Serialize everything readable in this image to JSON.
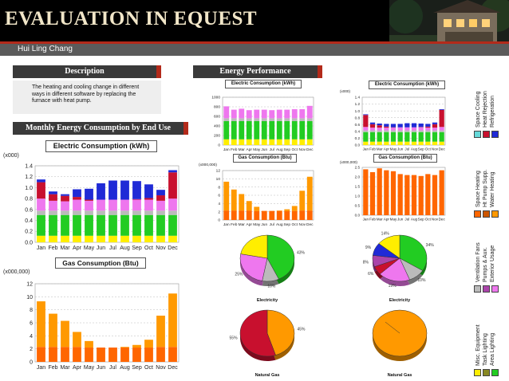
{
  "header": {
    "title": "EVALUATION IN EQUEST",
    "author": "Hui Ling Chang"
  },
  "description": {
    "heading": "Description",
    "text": "The heating and cooling change in different ways in different software by replacing the furnace with heat pump."
  },
  "monthly": {
    "heading": "Monthly Energy Consumption by End Use"
  },
  "performance": {
    "heading": "Energy Performance"
  },
  "months": [
    "Jan",
    "Feb",
    "Mar",
    "Apr",
    "May",
    "Jun",
    "Jul",
    "Aug",
    "Sep",
    "Oct",
    "Nov",
    "Dec"
  ],
  "colors": {
    "space_cooling": "#1f2ad6",
    "heat_rejection": "#c8102e",
    "refrigeration": "#66d9d9",
    "space_heating": "#ff9900",
    "hp_supp": "#cc5500",
    "water_heating": "#ff6600",
    "ventilation_fans": "#ee77ee",
    "pumps_aux": "#aa44aa",
    "exterior_usage": "#bbbbbb",
    "misc_equipment": "#22cc22",
    "task_lighting": "#888822",
    "area_lighting": "#ffee00"
  },
  "legend": {
    "groups": [
      {
        "labels": [
          "Space Cooling",
          "Heat Rejection",
          "Refrigeration"
        ],
        "swatches": [
          "#1f2ad6",
          "#c8102e",
          "#66d9d9"
        ]
      },
      {
        "labels": [
          "Space Heating",
          "Ht Pump Supp.",
          "Water Heating"
        ],
        "swatches": [
          "#ff9900",
          "#cc5500",
          "#ff6600"
        ]
      },
      {
        "labels": [
          "Ventilation Fans",
          "Pumps & Aux.",
          "Exterior Usage"
        ],
        "swatches": [
          "#ee77ee",
          "#aa44aa",
          "#bbbbbb"
        ]
      },
      {
        "labels": [
          "Misc. Equipment",
          "Task Lighting",
          "Area Lighting"
        ],
        "swatches": [
          "#22cc22",
          "#888822",
          "#ffee00"
        ]
      }
    ]
  },
  "chart_data": [
    {
      "id": "large-elec",
      "type": "bar",
      "stacked": true,
      "title": "Electric Consumption (kWh)",
      "yunit": "(x000)",
      "ylim": [
        0,
        1.4
      ],
      "yticks": [
        "0.0",
        "0.2",
        "0.4",
        "0.6",
        "0.8",
        "1.0",
        "1.2",
        "1.4"
      ],
      "series": [
        {
          "key": "area_lighting",
          "values": [
            0.12,
            0.12,
            0.12,
            0.12,
            0.12,
            0.12,
            0.12,
            0.12,
            0.12,
            0.12,
            0.12,
            0.12
          ]
        },
        {
          "key": "misc_equipment",
          "values": [
            0.38,
            0.38,
            0.38,
            0.38,
            0.38,
            0.38,
            0.38,
            0.38,
            0.38,
            0.38,
            0.38,
            0.38
          ]
        },
        {
          "key": "exterior_usage",
          "values": [
            0.08,
            0.08,
            0.08,
            0.08,
            0.08,
            0.08,
            0.08,
            0.08,
            0.08,
            0.08,
            0.08,
            0.08
          ]
        },
        {
          "key": "ventilation_fans",
          "values": [
            0.22,
            0.18,
            0.17,
            0.2,
            0.18,
            0.2,
            0.2,
            0.2,
            0.2,
            0.2,
            0.18,
            0.22
          ]
        },
        {
          "key": "heat_rejection",
          "values": [
            0.3,
            0.12,
            0.1,
            0.05,
            0.02,
            0,
            0,
            0,
            0.01,
            0.03,
            0.1,
            0.48
          ]
        },
        {
          "key": "space_cooling",
          "values": [
            0.05,
            0.05,
            0.03,
            0.14,
            0.2,
            0.3,
            0.35,
            0.35,
            0.33,
            0.25,
            0.1,
            0.04
          ]
        }
      ]
    },
    {
      "id": "large-gas",
      "type": "bar",
      "stacked": true,
      "title": "Gas Consumption (Btu)",
      "yunit": "(x000,000)",
      "ylim": [
        0,
        12
      ],
      "yticks": [
        "0",
        "2",
        "4",
        "6",
        "8",
        "10",
        "12"
      ],
      "series": [
        {
          "key": "water_heating",
          "values": [
            2.3,
            2.3,
            2.3,
            2.3,
            2.2,
            2.2,
            2.2,
            2.2,
            2.2,
            2.2,
            2.3,
            2.3
          ]
        },
        {
          "key": "space_heating",
          "values": [
            7.0,
            5.1,
            4.0,
            2.3,
            1.0,
            0,
            0,
            0.1,
            0.4,
            1.2,
            4.8,
            8.2
          ]
        }
      ]
    },
    {
      "id": "small-elec-left",
      "type": "bar",
      "stacked": true,
      "title": "Electric Consumption (kWh)",
      "ylim": [
        0,
        1000
      ],
      "yticks": [
        "0",
        "200",
        "400",
        "600",
        "800",
        "1000"
      ],
      "series": [
        {
          "key": "area_lighting",
          "values": [
            120,
            120,
            120,
            120,
            120,
            120,
            120,
            120,
            120,
            120,
            120,
            120
          ]
        },
        {
          "key": "misc_equipment",
          "values": [
            380,
            380,
            380,
            380,
            380,
            380,
            380,
            380,
            380,
            380,
            380,
            380
          ]
        },
        {
          "key": "exterior_usage",
          "values": [
            60,
            60,
            60,
            60,
            60,
            60,
            60,
            60,
            60,
            60,
            60,
            60
          ]
        },
        {
          "key": "ventilation_fans",
          "values": [
            250,
            180,
            200,
            170,
            180,
            180,
            170,
            180,
            180,
            190,
            190,
            260
          ]
        }
      ]
    },
    {
      "id": "small-elec-right",
      "type": "bar",
      "stacked": true,
      "title": "Electric Consumption (kWh)",
      "yunit": "(x000)",
      "ylim": [
        0,
        1.4
      ],
      "yticks": [
        "0.0",
        "0.2",
        "0.4",
        "0.6",
        "0.8",
        "1.0",
        "1.2",
        "1.4"
      ],
      "series": [
        {
          "key": "area_lighting",
          "values": [
            0.1,
            0.1,
            0.1,
            0.1,
            0.1,
            0.1,
            0.1,
            0.1,
            0.1,
            0.1,
            0.1,
            0.1
          ]
        },
        {
          "key": "misc_equipment",
          "values": [
            0.28,
            0.28,
            0.28,
            0.28,
            0.28,
            0.28,
            0.28,
            0.28,
            0.28,
            0.28,
            0.28,
            0.28
          ]
        },
        {
          "key": "exterior_usage",
          "values": [
            0.05,
            0.05,
            0.05,
            0.05,
            0.05,
            0.05,
            0.05,
            0.05,
            0.05,
            0.05,
            0.05,
            0.05
          ]
        },
        {
          "key": "ventilation_fans",
          "values": [
            0.1,
            0.08,
            0.08,
            0.08,
            0.08,
            0.09,
            0.09,
            0.09,
            0.09,
            0.08,
            0.08,
            0.1
          ]
        },
        {
          "key": "heat_rejection",
          "values": [
            0.35,
            0.1,
            0.07,
            0.03,
            0.01,
            0,
            0,
            0,
            0.01,
            0.03,
            0.1,
            0.5
          ]
        },
        {
          "key": "space_cooling",
          "values": [
            0.02,
            0.05,
            0.05,
            0.08,
            0.1,
            0.1,
            0.12,
            0.12,
            0.1,
            0.08,
            0.05,
            0.02
          ]
        }
      ]
    },
    {
      "id": "small-gas-left",
      "type": "bar",
      "stacked": true,
      "title": "Gas Consumption (Btu)",
      "yunit": "(x000,000)",
      "ylim": [
        0,
        12
      ],
      "yticks": [
        "0",
        "2",
        "4",
        "6",
        "8",
        "10",
        "12"
      ],
      "series": [
        {
          "key": "water_heating",
          "values": [
            2.3,
            2.3,
            2.3,
            2.3,
            2.2,
            2.2,
            2.2,
            2.2,
            2.2,
            2.2,
            2.3,
            2.3
          ]
        },
        {
          "key": "space_heating",
          "values": [
            7.0,
            5.1,
            4.0,
            2.3,
            1.0,
            0,
            0,
            0.1,
            0.4,
            1.2,
            4.8,
            8.2
          ]
        }
      ]
    },
    {
      "id": "small-gas-right",
      "type": "bar",
      "stacked": true,
      "title": "Gas Consumption (Btu)",
      "yunit": "(x000,000)",
      "ylim": [
        0,
        2.5
      ],
      "yticks": [
        "0.0",
        "0.5",
        "1.0",
        "1.5",
        "2.0",
        "2.5"
      ],
      "series": [
        {
          "key": "water_heating",
          "values": [
            2.4,
            2.25,
            2.45,
            2.35,
            2.3,
            2.15,
            2.1,
            2.1,
            2.05,
            2.15,
            2.1,
            2.35
          ]
        }
      ]
    },
    {
      "id": "pie-elec-left",
      "type": "pie",
      "caption": "Electricity",
      "slices": [
        {
          "key": "misc_equipment",
          "value": 43,
          "label": "43%"
        },
        {
          "key": "exterior_usage",
          "value": 10,
          "label": "10%"
        },
        {
          "key": "ventilation_fans",
          "value": 25,
          "label": "25%"
        },
        {
          "key": "area_lighting",
          "value": 22,
          "label": ""
        }
      ]
    },
    {
      "id": "pie-elec-right",
      "type": "pie",
      "caption": "Electricity",
      "slices": [
        {
          "key": "misc_equipment",
          "value": 34,
          "label": "34%"
        },
        {
          "key": "exterior_usage",
          "value": 10,
          "label": "10%"
        },
        {
          "key": "ventilation_fans",
          "value": 19,
          "label": "19%"
        },
        {
          "key": "heat_rejection",
          "value": 6,
          "label": "6%"
        },
        {
          "key": "pumps_aux",
          "value": 8,
          "label": "8%"
        },
        {
          "key": "space_cooling",
          "value": 9,
          "label": "9%"
        },
        {
          "key": "area_lighting",
          "value": 14,
          "label": "14%"
        }
      ]
    },
    {
      "id": "pie-gas-left",
      "type": "pie",
      "caption": "Natural Gas",
      "slices": [
        {
          "key": "space_heating",
          "value": 45,
          "label": "45%"
        },
        {
          "key": "heat_rejection",
          "value": 55,
          "label": "55%"
        }
      ]
    },
    {
      "id": "pie-gas-right",
      "type": "pie",
      "caption": "Natural Gas",
      "slices": [
        {
          "key": "space_heating",
          "value": 100,
          "label": ""
        }
      ]
    }
  ]
}
